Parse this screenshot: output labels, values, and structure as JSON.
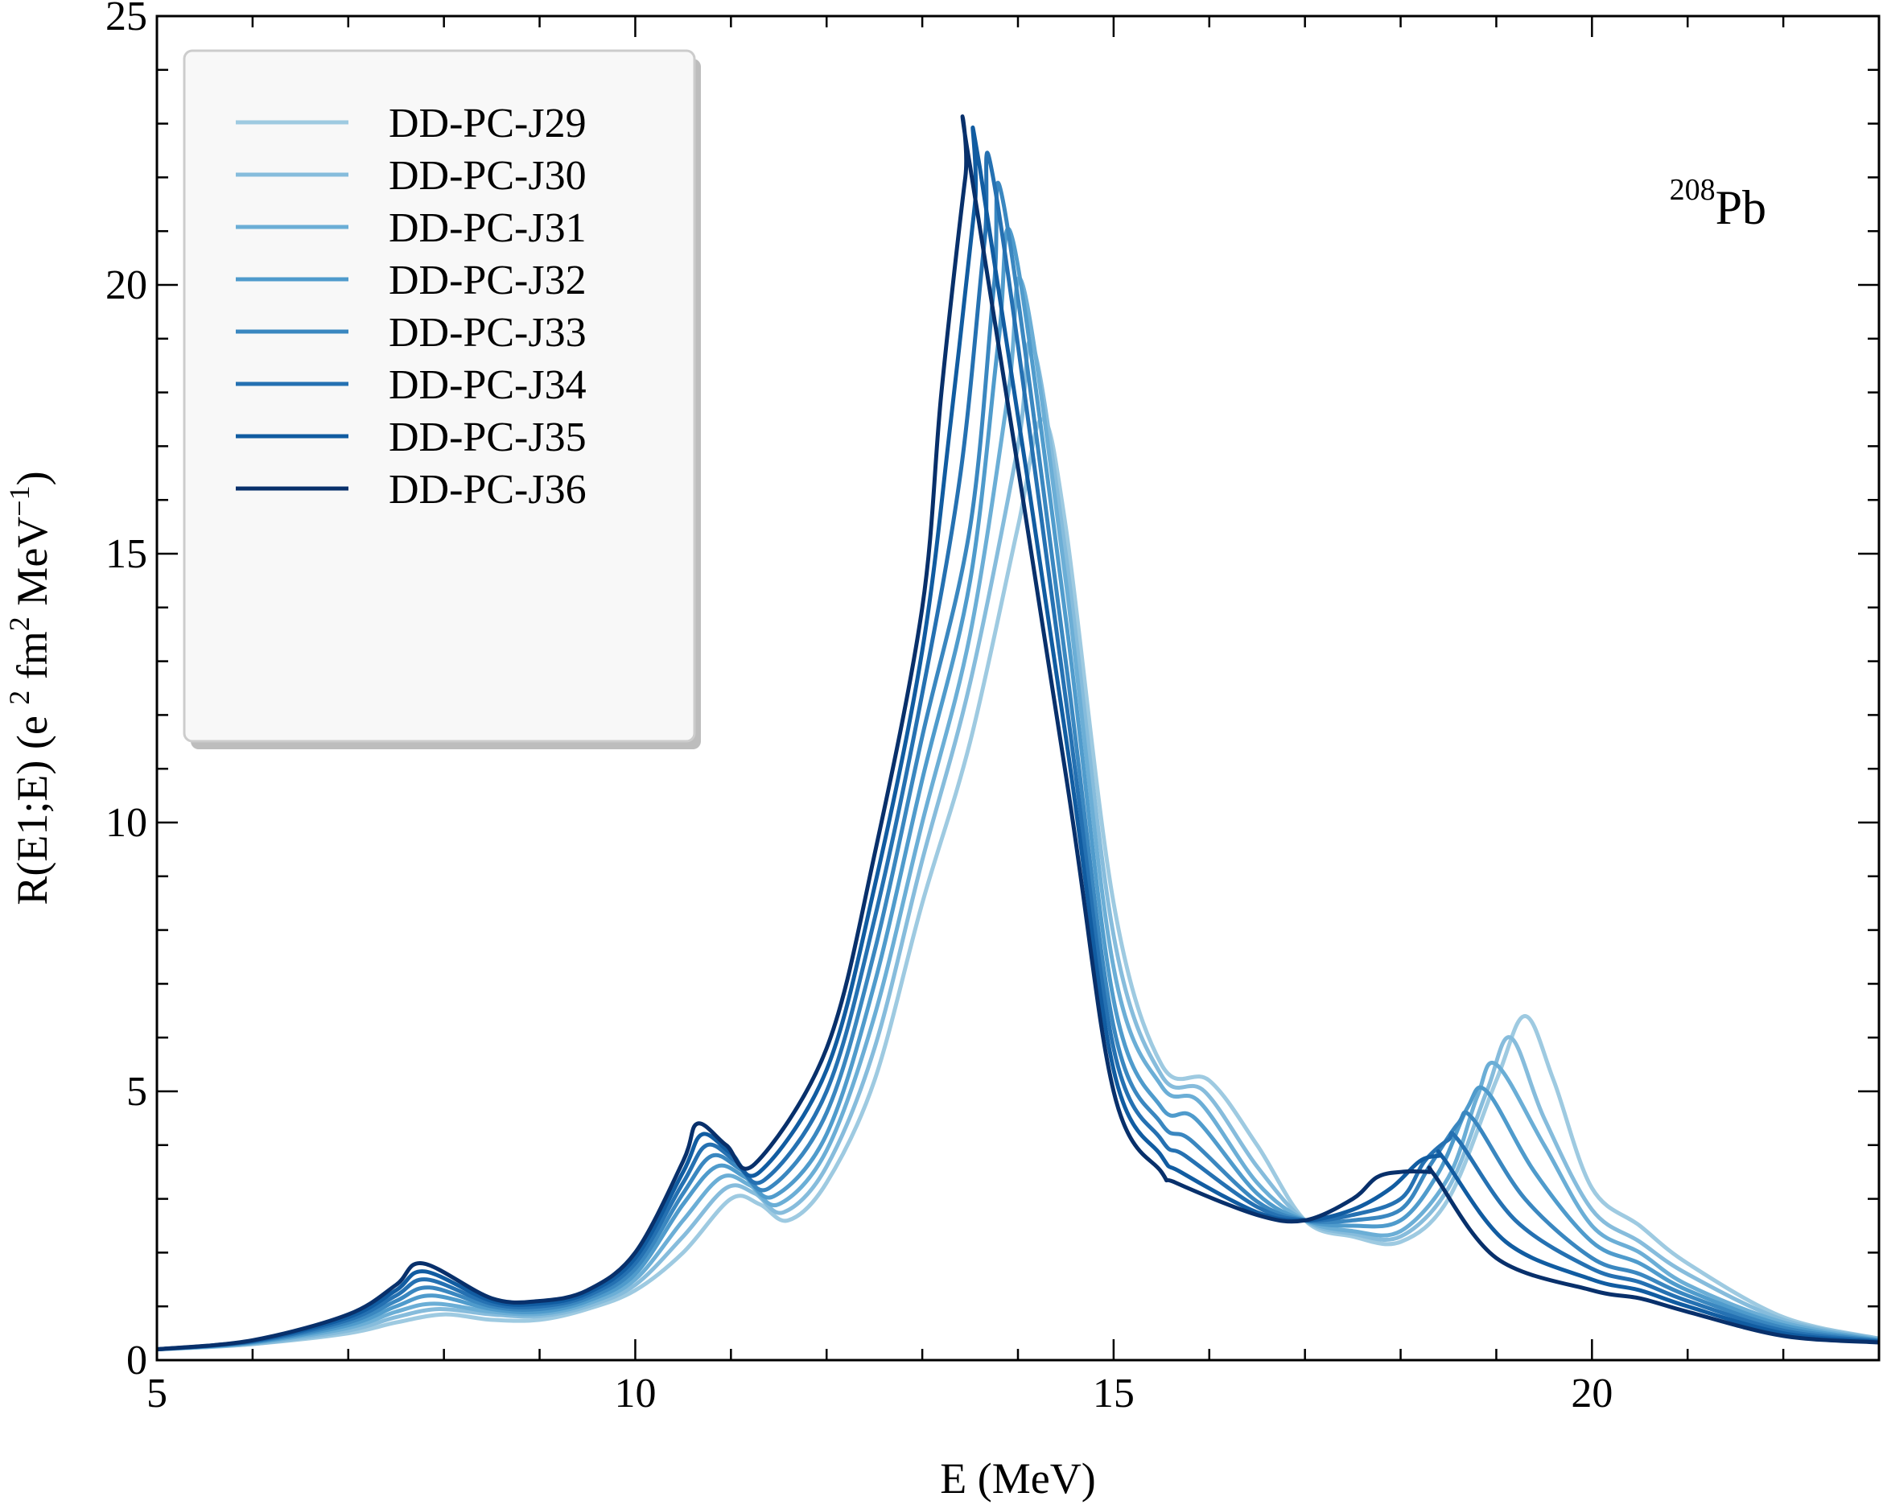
{
  "chart_data": {
    "type": "line",
    "title": "",
    "xlabel": "E (MeV)",
    "ylabel": "R(E1;E) (e² fm² MeV⁻¹)",
    "ylabel_parts": {
      "a": "R(E1;E) (e ",
      "a_sup": "2",
      "b": " fm",
      "b_sup": "2",
      "c": " MeV",
      "c_sup": "−1",
      "d": ")"
    },
    "xlim": [
      5,
      23
    ],
    "ylim": [
      0,
      25
    ],
    "xticks": [
      5,
      10,
      15,
      20
    ],
    "yticks": [
      0,
      5,
      10,
      15,
      20,
      25
    ],
    "xtick_labels": [
      "5",
      "10",
      "15",
      "20"
    ],
    "ytick_labels": [
      "0",
      "5",
      "10",
      "15",
      "20",
      "25"
    ],
    "grid": false,
    "legend_position": "top-left",
    "annotation": {
      "sup": "208",
      "main": "Pb"
    },
    "series": [
      {
        "name": "DD-PC-J29",
        "color": "#9ecae1",
        "x": [
          5,
          6,
          7,
          7.5,
          8,
          8.5,
          9,
          9.5,
          10,
          10.5,
          11,
          11.3,
          11.6,
          12,
          12.5,
          13,
          13.5,
          14,
          14.25,
          14.5,
          15,
          15.5,
          16,
          16.5,
          17,
          17.5,
          18,
          18.5,
          19,
          19.3,
          19.6,
          20,
          20.5,
          21,
          22,
          23
        ],
        "y": [
          0.2,
          0.3,
          0.5,
          0.7,
          0.85,
          0.75,
          0.75,
          0.95,
          1.3,
          2.0,
          3.0,
          2.9,
          2.6,
          3.3,
          5.2,
          8.5,
          11.5,
          15.5,
          17.5,
          15.5,
          8.5,
          5.5,
          5.2,
          4.0,
          2.6,
          2.3,
          2.2,
          3.0,
          5.2,
          6.4,
          5.2,
          3.2,
          2.5,
          1.8,
          0.8,
          0.4
        ]
      },
      {
        "name": "DD-PC-J30",
        "color": "#86bcdc",
        "x": [
          5,
          6,
          7,
          7.5,
          7.95,
          8.5,
          9,
          9.5,
          10,
          10.5,
          10.95,
          11.25,
          11.55,
          12,
          12.5,
          13,
          13.5,
          14,
          14.15,
          14.5,
          15,
          15.5,
          15.95,
          16.5,
          17,
          17.5,
          18,
          18.5,
          18.9,
          19.15,
          19.5,
          20,
          20.5,
          21,
          22,
          23
        ],
        "y": [
          0.2,
          0.3,
          0.55,
          0.8,
          0.95,
          0.85,
          0.82,
          1.0,
          1.4,
          2.3,
          3.2,
          3.1,
          2.75,
          3.6,
          5.8,
          9.3,
          12.6,
          17.0,
          18.9,
          15.0,
          7.9,
          5.3,
          5.0,
          3.6,
          2.6,
          2.35,
          2.3,
          3.2,
          5.0,
          6.0,
          4.5,
          2.8,
          2.2,
          1.6,
          0.75,
          0.4
        ]
      },
      {
        "name": "DD-PC-J31",
        "color": "#6baed6",
        "x": [
          5,
          6,
          7,
          7.5,
          7.9,
          8.5,
          9,
          9.5,
          10,
          10.5,
          10.9,
          11.2,
          11.5,
          12,
          12.5,
          13,
          13.5,
          13.9,
          14.05,
          14.5,
          15,
          15.5,
          15.9,
          16.5,
          17,
          17.5,
          18,
          18.5,
          18.8,
          19.0,
          19.5,
          20,
          20.5,
          21,
          22,
          23
        ],
        "y": [
          0.2,
          0.32,
          0.6,
          0.9,
          1.05,
          0.9,
          0.86,
          1.05,
          1.5,
          2.6,
          3.4,
          3.25,
          2.9,
          3.9,
          6.4,
          10.0,
          13.5,
          18.0,
          20.0,
          14.5,
          7.3,
          5.1,
          4.8,
          3.3,
          2.6,
          2.4,
          2.4,
          3.4,
          4.9,
          5.5,
          4.0,
          2.5,
          2.0,
          1.4,
          0.7,
          0.38
        ]
      },
      {
        "name": "DD-PC-J32",
        "color": "#4f9bcc",
        "x": [
          5,
          6,
          7,
          7.5,
          7.88,
          8.5,
          9,
          9.5,
          10,
          10.5,
          10.85,
          11.15,
          11.45,
          12,
          12.5,
          13,
          13.5,
          13.8,
          13.95,
          14.5,
          15,
          15.5,
          15.85,
          16.5,
          17,
          17.5,
          18,
          18.4,
          18.7,
          18.9,
          19.4,
          20,
          20.5,
          21,
          22,
          23
        ],
        "y": [
          0.2,
          0.33,
          0.65,
          1.0,
          1.2,
          0.95,
          0.9,
          1.1,
          1.6,
          2.9,
          3.6,
          3.4,
          3.05,
          4.2,
          7.0,
          10.8,
          14.5,
          19.0,
          20.8,
          13.8,
          6.7,
          4.7,
          4.5,
          3.1,
          2.6,
          2.5,
          2.6,
          3.5,
          4.7,
          5.0,
          3.5,
          2.2,
          1.8,
          1.3,
          0.65,
          0.37
        ]
      },
      {
        "name": "DD-PC-J33",
        "color": "#3a87c0",
        "x": [
          5,
          6,
          7,
          7.5,
          7.85,
          8.5,
          9,
          9.5,
          10,
          10.5,
          10.8,
          11.1,
          11.4,
          12,
          12.5,
          13,
          13.5,
          13.75,
          13.85,
          14.5,
          15,
          15.5,
          15.8,
          16.5,
          17,
          17.5,
          18,
          18.3,
          18.6,
          18.75,
          19.3,
          20,
          20.5,
          21,
          22,
          23
        ],
        "y": [
          0.2,
          0.34,
          0.7,
          1.1,
          1.35,
          1.0,
          0.95,
          1.15,
          1.7,
          3.1,
          3.8,
          3.55,
          3.2,
          4.6,
          7.6,
          11.6,
          15.5,
          20.0,
          21.5,
          13.0,
          6.2,
          4.4,
          4.1,
          2.95,
          2.6,
          2.6,
          2.8,
          3.6,
          4.4,
          4.5,
          3.0,
          1.9,
          1.6,
          1.2,
          0.6,
          0.36
        ]
      },
      {
        "name": "DD-PC-J34",
        "color": "#2571b2",
        "x": [
          5,
          6,
          7,
          7.5,
          7.82,
          8.5,
          9,
          9.5,
          10,
          10.5,
          10.75,
          11.05,
          11.35,
          12,
          12.5,
          13,
          13.4,
          13.65,
          13.75,
          14.5,
          15,
          15.5,
          15.75,
          16.5,
          17,
          17.5,
          18,
          18.25,
          18.5,
          18.6,
          19.2,
          20,
          20.5,
          21,
          22,
          23
        ],
        "y": [
          0.2,
          0.35,
          0.75,
          1.2,
          1.5,
          1.05,
          1.0,
          1.2,
          1.8,
          3.3,
          4.0,
          3.7,
          3.35,
          5.0,
          8.2,
          12.4,
          16.5,
          20.8,
          21.9,
          12.3,
          5.8,
          4.1,
          3.8,
          2.85,
          2.6,
          2.7,
          3.0,
          3.7,
          4.1,
          4.1,
          2.6,
          1.7,
          1.45,
          1.1,
          0.55,
          0.35
        ]
      },
      {
        "name": "DD-PC-J35",
        "color": "#115ca1",
        "x": [
          5,
          6,
          7,
          7.5,
          7.8,
          8.5,
          9,
          9.5,
          10,
          10.5,
          10.7,
          11.0,
          11.3,
          12,
          12.5,
          13,
          13.3,
          13.55,
          13.6,
          14.5,
          15,
          15.5,
          15.7,
          16.5,
          17,
          17.5,
          17.9,
          18.2,
          18.4,
          18.45,
          19.1,
          20,
          20.5,
          21,
          22,
          23
        ],
        "y": [
          0.2,
          0.36,
          0.8,
          1.3,
          1.65,
          1.1,
          1.05,
          1.25,
          1.9,
          3.5,
          4.2,
          3.85,
          3.5,
          5.4,
          8.8,
          13.2,
          17.5,
          21.5,
          22.2,
          11.6,
          5.4,
          3.8,
          3.5,
          2.75,
          2.6,
          2.8,
          3.2,
          3.7,
          3.8,
          3.75,
          2.2,
          1.5,
          1.3,
          1.0,
          0.5,
          0.34
        ]
      },
      {
        "name": "DD-PC-J36",
        "color": "#08306b",
        "x": [
          5,
          6,
          7,
          7.5,
          7.78,
          8.5,
          9,
          9.5,
          10,
          10.5,
          10.65,
          10.95,
          11.25,
          12,
          12.5,
          13,
          13.2,
          13.45,
          13.5,
          14.5,
          15,
          15.5,
          15.65,
          16.5,
          17,
          17.5,
          17.75,
          18.0,
          18.3,
          18.35,
          19.0,
          20,
          20.5,
          21,
          22,
          23
        ],
        "y": [
          0.2,
          0.37,
          0.85,
          1.4,
          1.8,
          1.15,
          1.1,
          1.3,
          2.0,
          3.7,
          4.4,
          4.0,
          3.65,
          5.8,
          9.4,
          14.0,
          18.0,
          22.0,
          22.2,
          10.9,
          5.0,
          3.5,
          3.3,
          2.7,
          2.6,
          3.0,
          3.4,
          3.5,
          3.5,
          3.45,
          1.9,
          1.3,
          1.15,
          0.9,
          0.45,
          0.33
        ]
      }
    ]
  }
}
